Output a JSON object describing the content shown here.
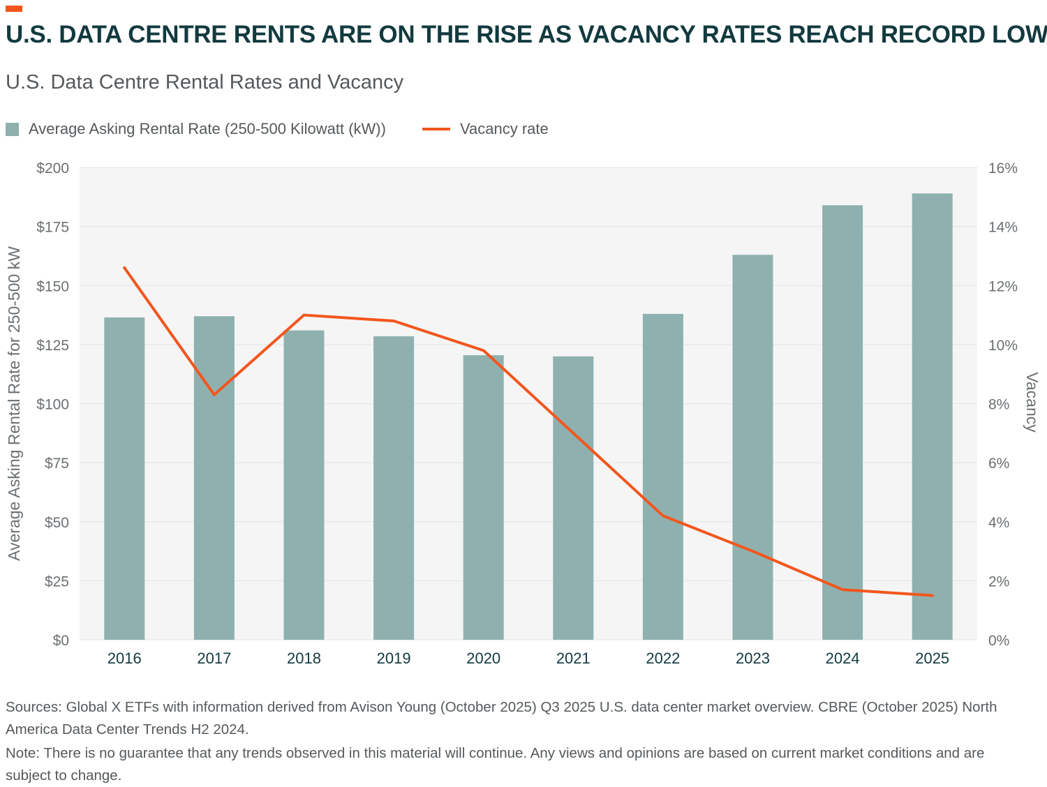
{
  "brand_color": "#f2561d",
  "title": "U.S. DATA CENTRE RENTS ARE ON THE RISE AS VACANCY RATES REACH RECORD LOWS",
  "subtitle": "U.S. Data Centre Rental Rates and Vacancy",
  "footer": {
    "sources": "Sources: Global X ETFs with information derived from Avison Young (October 2025) Q3 2025 U.S. data center market overview. CBRE (October 2025) North America Data Center Trends H2 2024.",
    "note": "Note: There is no guarantee that any trends observed in this material will continue. Any views and opinions are based on current market conditions and are subject to change."
  },
  "chart_data": {
    "type": "bar",
    "categories": [
      "2016",
      "2017",
      "2018",
      "2019",
      "2020",
      "2021",
      "2022",
      "2023",
      "2024",
      "2025"
    ],
    "series": [
      {
        "name": "Average Asking Rental Rate (250-500 Kilowatt (kW))",
        "type": "bar",
        "axis": "left",
        "color": "#8eb1b0",
        "values": [
          136.5,
          137,
          131,
          128.5,
          120.5,
          120,
          138,
          163,
          184,
          189
        ]
      },
      {
        "name": "Vacancy rate",
        "type": "line",
        "axis": "right",
        "color": "#f2561d",
        "values": [
          12.6,
          8.3,
          11.0,
          10.8,
          9.8,
          7.0,
          4.2,
          3.0,
          1.7,
          1.5
        ]
      }
    ],
    "ylabel": "Average Asking Rental Rate for 250-500 kW",
    "y2label": "Vacancy",
    "ylim": [
      0,
      200
    ],
    "y2lim": [
      0,
      16
    ],
    "yticks": [
      "$0",
      "$25",
      "$50",
      "$75",
      "$100",
      "$125",
      "$150",
      "$175",
      "$200"
    ],
    "y2ticks": [
      "0%",
      "2%",
      "4%",
      "6%",
      "8%",
      "10%",
      "12%",
      "14%",
      "16%"
    ],
    "grid": true,
    "legend_position": "top-left",
    "plot_background": "#f5f5f5"
  }
}
